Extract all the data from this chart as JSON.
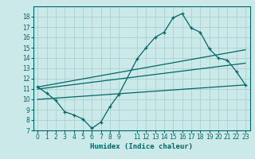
{
  "xlabel": "Humidex (Indice chaleur)",
  "bg_color": "#cce9e9",
  "grid_color": "#aad0d0",
  "line_color": "#006666",
  "xlim": [
    -0.5,
    23.5
  ],
  "ylim": [
    7,
    19
  ],
  "xticks": [
    0,
    1,
    2,
    3,
    4,
    5,
    6,
    7,
    8,
    9,
    11,
    12,
    13,
    14,
    15,
    16,
    17,
    18,
    19,
    20,
    21,
    22,
    23
  ],
  "yticks": [
    7,
    8,
    9,
    10,
    11,
    12,
    13,
    14,
    15,
    16,
    17,
    18
  ],
  "line1_x": [
    0,
    1,
    2,
    3,
    4,
    5,
    6,
    7,
    8,
    9,
    11,
    12,
    13,
    14,
    15,
    16,
    17,
    18,
    19,
    20,
    21,
    22,
    23
  ],
  "line1_y": [
    11.2,
    10.6,
    9.9,
    8.8,
    8.5,
    8.1,
    7.2,
    7.8,
    9.3,
    10.5,
    13.9,
    15.0,
    16.0,
    16.5,
    17.9,
    18.3,
    16.9,
    16.5,
    14.9,
    14.0,
    13.8,
    12.7,
    11.4
  ],
  "line2_x": [
    0,
    23
  ],
  "line2_y": [
    11.2,
    14.8
  ],
  "line3_x": [
    0,
    23
  ],
  "line3_y": [
    11.0,
    13.5
  ],
  "line4_x": [
    0,
    23
  ],
  "line4_y": [
    10.0,
    11.4
  ]
}
